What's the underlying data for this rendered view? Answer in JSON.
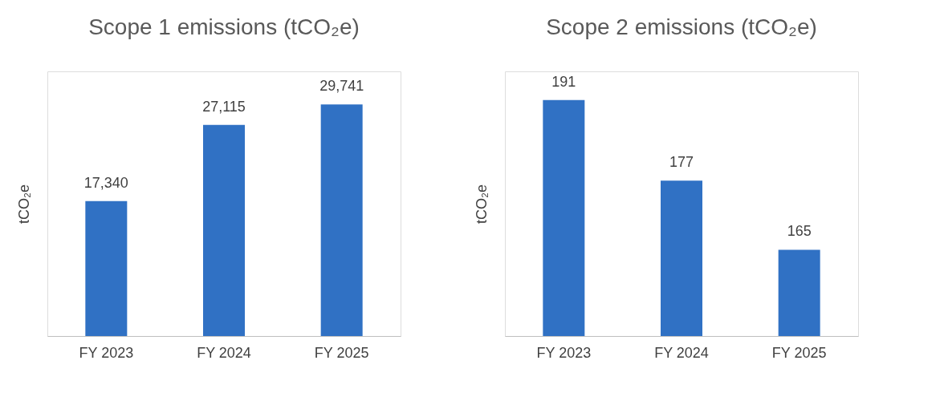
{
  "chart_data": [
    {
      "type": "bar",
      "title": "Scope 1 emissions (tCO₂e)",
      "ylabel": "tCO₂e",
      "categories": [
        "FY 2023",
        "FY 2024",
        "FY 2025"
      ],
      "values": [
        17340,
        27115,
        29741
      ],
      "color": "#3071c4",
      "ylim": [
        0,
        34000
      ],
      "data_labels": true,
      "value_labels": [
        "17,340",
        "27,115",
        "29,741"
      ],
      "tick_labels": "x",
      "grid": false
    },
    {
      "type": "bar",
      "title": "Scope 2 emissions (tCO₂e)",
      "ylabel": "tCO₂e",
      "categories": [
        "FY 2023",
        "FY 2024",
        "FY 2025"
      ],
      "values": [
        191,
        177,
        165
      ],
      "color": "#3071c4",
      "ylim": [
        150,
        196
      ],
      "data_labels": true,
      "value_labels": [
        "191",
        "177",
        "165"
      ],
      "tick_labels": "x",
      "grid": false
    }
  ]
}
